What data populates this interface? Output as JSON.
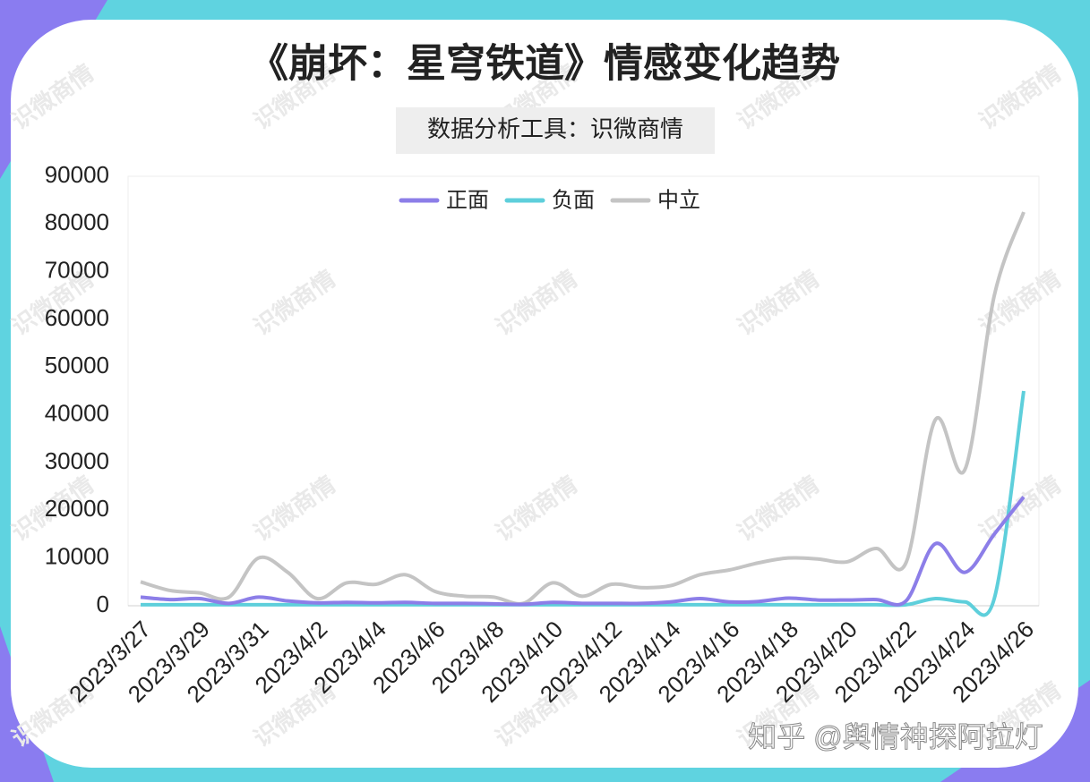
{
  "chart_data": {
    "type": "line",
    "title": "《崩坏：星穹铁道》情感变化趋势",
    "subtitle": "数据分析工具：识微商情",
    "watermark": "识微商情",
    "footer": "知乎 @舆情神探阿拉灯",
    "categories": [
      "2023/3/27",
      null,
      "2023/3/29",
      null,
      "2023/3/31",
      null,
      "2023/4/2",
      null,
      "2023/4/4",
      null,
      "2023/4/6",
      null,
      "2023/4/8",
      null,
      "2023/4/10",
      null,
      "2023/4/12",
      null,
      "2023/4/14",
      null,
      "2023/4/16",
      null,
      "2023/4/18",
      null,
      "2023/4/20",
      null,
      "2023/4/22",
      null,
      "2023/4/24",
      null,
      "2023/4/26"
    ],
    "series": [
      {
        "name": "正面",
        "color": "#8c7ee8",
        "values": [
          1800,
          1300,
          1500,
          500,
          1800,
          1000,
          600,
          700,
          600,
          700,
          500,
          500,
          400,
          300,
          700,
          500,
          500,
          500,
          800,
          1500,
          800,
          900,
          1600,
          1200,
          1200,
          1300,
          1000,
          13000,
          7000,
          15000,
          22800
        ]
      },
      {
        "name": "负面",
        "color": "#5ecfdb",
        "values": [
          200,
          200,
          200,
          200,
          200,
          200,
          200,
          200,
          200,
          200,
          200,
          200,
          200,
          200,
          200,
          200,
          200,
          200,
          200,
          200,
          200,
          200,
          200,
          200,
          200,
          200,
          200,
          1500,
          800,
          1500,
          45000
        ]
      },
      {
        "name": "中立",
        "color": "#c4c4c4",
        "values": [
          5000,
          3200,
          2700,
          1800,
          10000,
          7000,
          1500,
          4800,
          4500,
          6500,
          3000,
          2000,
          1800,
          500,
          4800,
          2000,
          4500,
          3800,
          4200,
          6500,
          7500,
          9000,
          10000,
          9800,
          9200,
          12000,
          9000,
          39000,
          28500,
          65000,
          82500
        ]
      }
    ],
    "ylim": [
      0,
      90000
    ],
    "yticks": [
      0,
      10000,
      20000,
      30000,
      40000,
      50000,
      60000,
      70000,
      80000,
      90000
    ],
    "grid": false,
    "legend": "top"
  }
}
